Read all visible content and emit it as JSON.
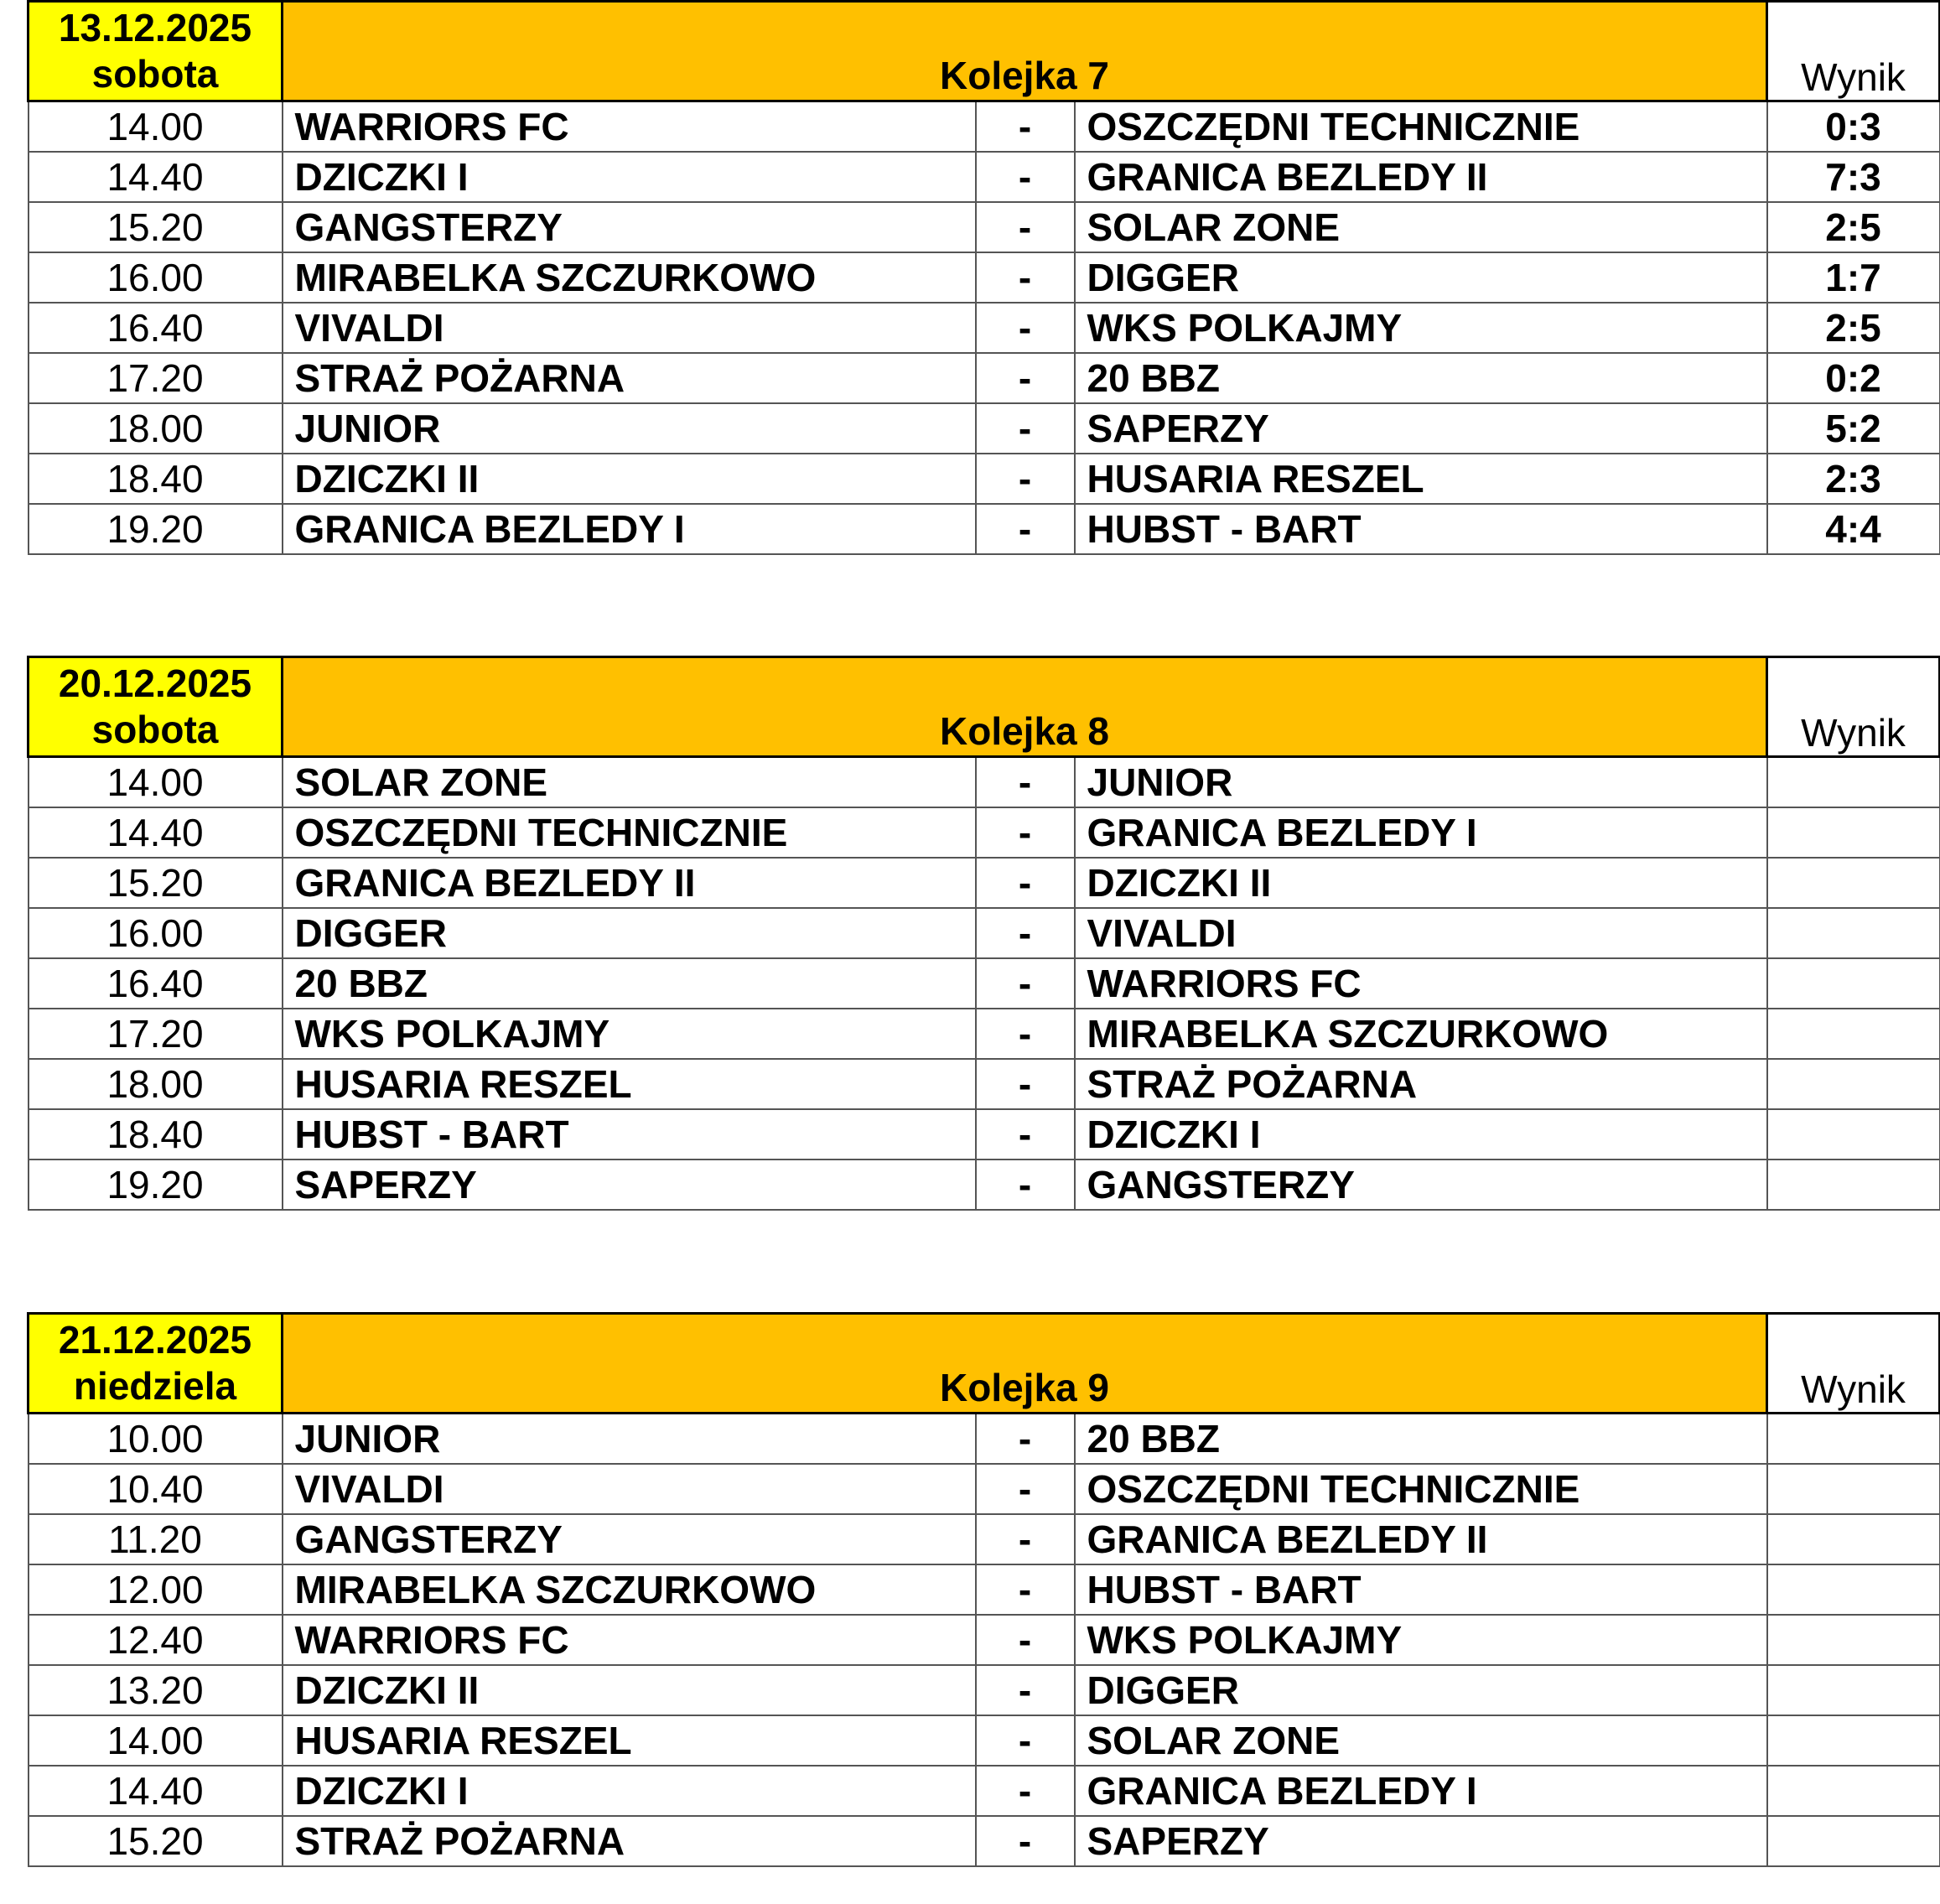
{
  "result_header": "Wynik",
  "rounds": [
    {
      "date": "13.12.2025",
      "day": "sobota",
      "title": "Kolejka 7",
      "matches": [
        {
          "time": "14.00",
          "home": "WARRIORS FC",
          "sep": "-",
          "away": "OSZCZĘDNI TECHNICZNIE",
          "result": "0:3"
        },
        {
          "time": "14.40",
          "home": "DZICZKI I",
          "sep": "-",
          "away": "GRANICA BEZLEDY II",
          "result": "7:3"
        },
        {
          "time": "15.20",
          "home": "GANGSTERZY",
          "sep": "-",
          "away": "SOLAR ZONE",
          "result": "2:5"
        },
        {
          "time": "16.00",
          "home": "MIRABELKA SZCZURKOWO",
          "sep": "-",
          "away": "DIGGER",
          "result": "1:7"
        },
        {
          "time": "16.40",
          "home": "VIVALDI",
          "sep": "-",
          "away": "WKS POLKAJMY",
          "result": "2:5"
        },
        {
          "time": "17.20",
          "home": "STRAŻ POŻARNA",
          "sep": "-",
          "away": "20 BBZ",
          "result": "0:2"
        },
        {
          "time": "18.00",
          "home": "JUNIOR",
          "sep": "-",
          "away": "SAPERZY",
          "result": "5:2"
        },
        {
          "time": "18.40",
          "home": "DZICZKI II",
          "sep": "-",
          "away": "HUSARIA RESZEL",
          "result": "2:3"
        },
        {
          "time": "19.20",
          "home": "GRANICA BEZLEDY I",
          "sep": "-",
          "away": "HUBST - BART",
          "result": "4:4"
        }
      ]
    },
    {
      "date": "20.12.2025",
      "day": "sobota",
      "title": "Kolejka 8",
      "matches": [
        {
          "time": "14.00",
          "home": "SOLAR ZONE",
          "sep": "-",
          "away": "JUNIOR",
          "result": ""
        },
        {
          "time": "14.40",
          "home": "OSZCZĘDNI TECHNICZNIE",
          "sep": "-",
          "away": "GRANICA BEZLEDY I",
          "result": ""
        },
        {
          "time": "15.20",
          "home": "GRANICA BEZLEDY II",
          "sep": "-",
          "away": "DZICZKI II",
          "result": ""
        },
        {
          "time": "16.00",
          "home": "DIGGER",
          "sep": "-",
          "away": "VIVALDI",
          "result": ""
        },
        {
          "time": "16.40",
          "home": "20 BBZ",
          "sep": "-",
          "away": "WARRIORS FC",
          "result": ""
        },
        {
          "time": "17.20",
          "home": "WKS POLKAJMY",
          "sep": "-",
          "away": "MIRABELKA SZCZURKOWO",
          "result": ""
        },
        {
          "time": "18.00",
          "home": "HUSARIA RESZEL",
          "sep": "-",
          "away": "STRAŻ POŻARNA",
          "result": ""
        },
        {
          "time": "18.40",
          "home": "HUBST - BART",
          "sep": "-",
          "away": "DZICZKI I",
          "result": ""
        },
        {
          "time": "19.20",
          "home": "SAPERZY",
          "sep": "-",
          "away": "GANGSTERZY",
          "result": ""
        }
      ]
    },
    {
      "date": "21.12.2025",
      "day": "niedziela",
      "title": "Kolejka 9",
      "matches": [
        {
          "time": "10.00",
          "home": "JUNIOR",
          "sep": "-",
          "away": "20 BBZ",
          "result": ""
        },
        {
          "time": "10.40",
          "home": "VIVALDI",
          "sep": "-",
          "away": "OSZCZĘDNI TECHNICZNIE",
          "result": ""
        },
        {
          "time": "11.20",
          "home": "GANGSTERZY",
          "sep": "-",
          "away": "GRANICA BEZLEDY II",
          "result": ""
        },
        {
          "time": "12.00",
          "home": "MIRABELKA SZCZURKOWO",
          "sep": "-",
          "away": "HUBST - BART",
          "result": ""
        },
        {
          "time": "12.40",
          "home": "WARRIORS FC",
          "sep": "-",
          "away": "WKS POLKAJMY",
          "result": ""
        },
        {
          "time": "13.20",
          "home": "DZICZKI II",
          "sep": "-",
          "away": "DIGGER",
          "result": ""
        },
        {
          "time": "14.00",
          "home": "HUSARIA RESZEL",
          "sep": "-",
          "away": "SOLAR ZONE",
          "result": ""
        },
        {
          "time": "14.40",
          "home": "DZICZKI I",
          "sep": "-",
          "away": "GRANICA BEZLEDY I",
          "result": ""
        },
        {
          "time": "15.20",
          "home": "STRAŻ POŻARNA",
          "sep": "-",
          "away": "SAPERZY",
          "result": ""
        }
      ]
    }
  ],
  "colors": {
    "date_bg": "#ffff00",
    "title_bg": "#ffc000"
  }
}
